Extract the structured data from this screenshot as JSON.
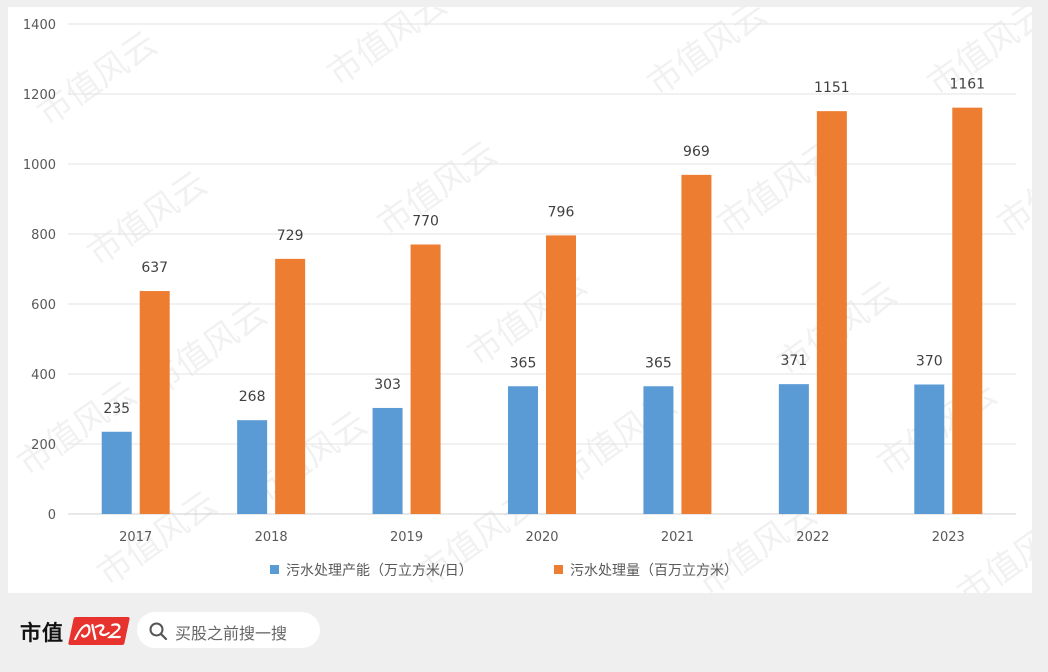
{
  "chart_data": {
    "type": "bar",
    "categories": [
      "2017",
      "2018",
      "2019",
      "2020",
      "2021",
      "2022",
      "2023"
    ],
    "series": [
      {
        "name": "污水处理产能（万立方米/日）",
        "color": "#5b9bd5",
        "values": [
          235,
          268,
          303,
          365,
          365,
          371,
          370
        ]
      },
      {
        "name": "污水处理量（百万立方米）",
        "color": "#ed7d31",
        "values": [
          637,
          729,
          770,
          796,
          969,
          1151,
          1161
        ]
      }
    ],
    "ylim": [
      0,
      1400
    ],
    "yticks": [
      0,
      200,
      400,
      600,
      800,
      1000,
      1200,
      1400
    ],
    "grid": true,
    "legend": "bottom",
    "data_labels": true
  },
  "watermark": {
    "text": "市值风云"
  },
  "footer": {
    "brand": "市值",
    "brand_logo_text": "风云",
    "search_placeholder": "买股之前搜一搜"
  }
}
